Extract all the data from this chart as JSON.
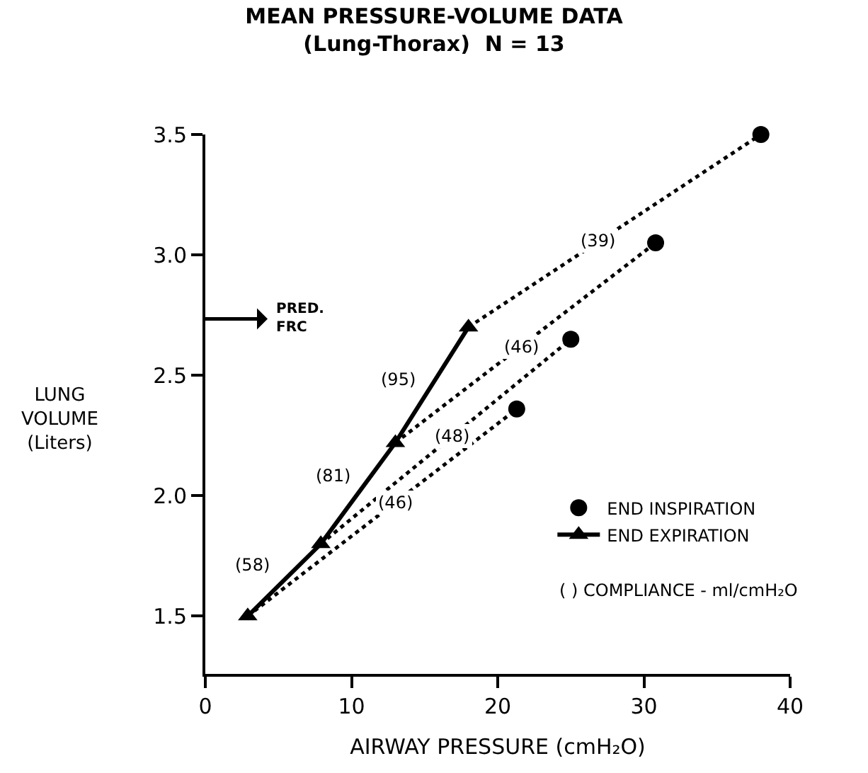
{
  "chart_data": {
    "type": "line",
    "title": "MEAN PRESSURE-VOLUME DATA\n(Lung-Thorax)  N = 13",
    "xlabel": "AIRWAY PRESSURE (cmH₂O)",
    "ylabel": "LUNG\nVOLUME\n(Liters)",
    "xlim": [
      0,
      40
    ],
    "xticks": [
      0,
      10,
      20,
      30,
      40
    ],
    "ylim": [
      1.26,
      3.5
    ],
    "yticks": [
      1.5,
      {
        "value": 2,
        "label": "2.0"
      },
      2.5,
      {
        "value": 3,
        "label": "3.0"
      },
      3.5
    ],
    "legend": "bottom right",
    "series": [
      {
        "name": "END EXPIRATION",
        "color": "#000000",
        "marker": "triangle",
        "line_style": "solid",
        "x": [
          2.9,
          7.9,
          13.0,
          18.0
        ],
        "values": [
          1.5,
          1.8,
          2.22,
          2.7
        ]
      },
      {
        "color": "#000000",
        "marker": "none",
        "line_style": "dotted",
        "x": [
          2.9,
          21.3
        ],
        "values": [
          1.5,
          2.36
        ]
      },
      {
        "color": "#000000",
        "marker": "none",
        "line_style": "dotted",
        "x": [
          7.9,
          25.0
        ],
        "values": [
          1.8,
          2.65
        ]
      },
      {
        "color": "#000000",
        "marker": "none",
        "line_style": "dotted",
        "x": [
          13.0,
          30.8
        ],
        "values": [
          2.22,
          3.05
        ]
      },
      {
        "color": "#000000",
        "marker": "none",
        "line_style": "dotted",
        "x": [
          18.0,
          38.0
        ],
        "values": [
          2.7,
          3.5
        ]
      },
      {
        "name": "END INSPIRATION",
        "type": "scatter",
        "color": "#000000",
        "marker": "circle",
        "x": [
          21.3,
          25.0,
          30.8,
          38.0
        ],
        "values": [
          2.36,
          2.65,
          3.05,
          3.5
        ]
      }
    ],
    "annotations": [
      {
        "text": "(58)",
        "x": 5.4,
        "y": 1.68
      },
      {
        "text": "(81)",
        "x": 10.9,
        "y": 2.05
      },
      {
        "text": "(95)",
        "x": 15.4,
        "y": 2.45
      },
      {
        "text": "(46)",
        "x": 13.0,
        "y": 1.97
      },
      {
        "text": "(48)",
        "x": 16.9,
        "y": 2.25
      },
      {
        "text": "(46)",
        "x": 21.6,
        "y": 2.62
      },
      {
        "text": "(39)",
        "x": 26.9,
        "y": 3.06
      },
      "( ) COMPLIANCE - ml/cmH₂O",
      "PRED.\nFRC"
    ]
  }
}
